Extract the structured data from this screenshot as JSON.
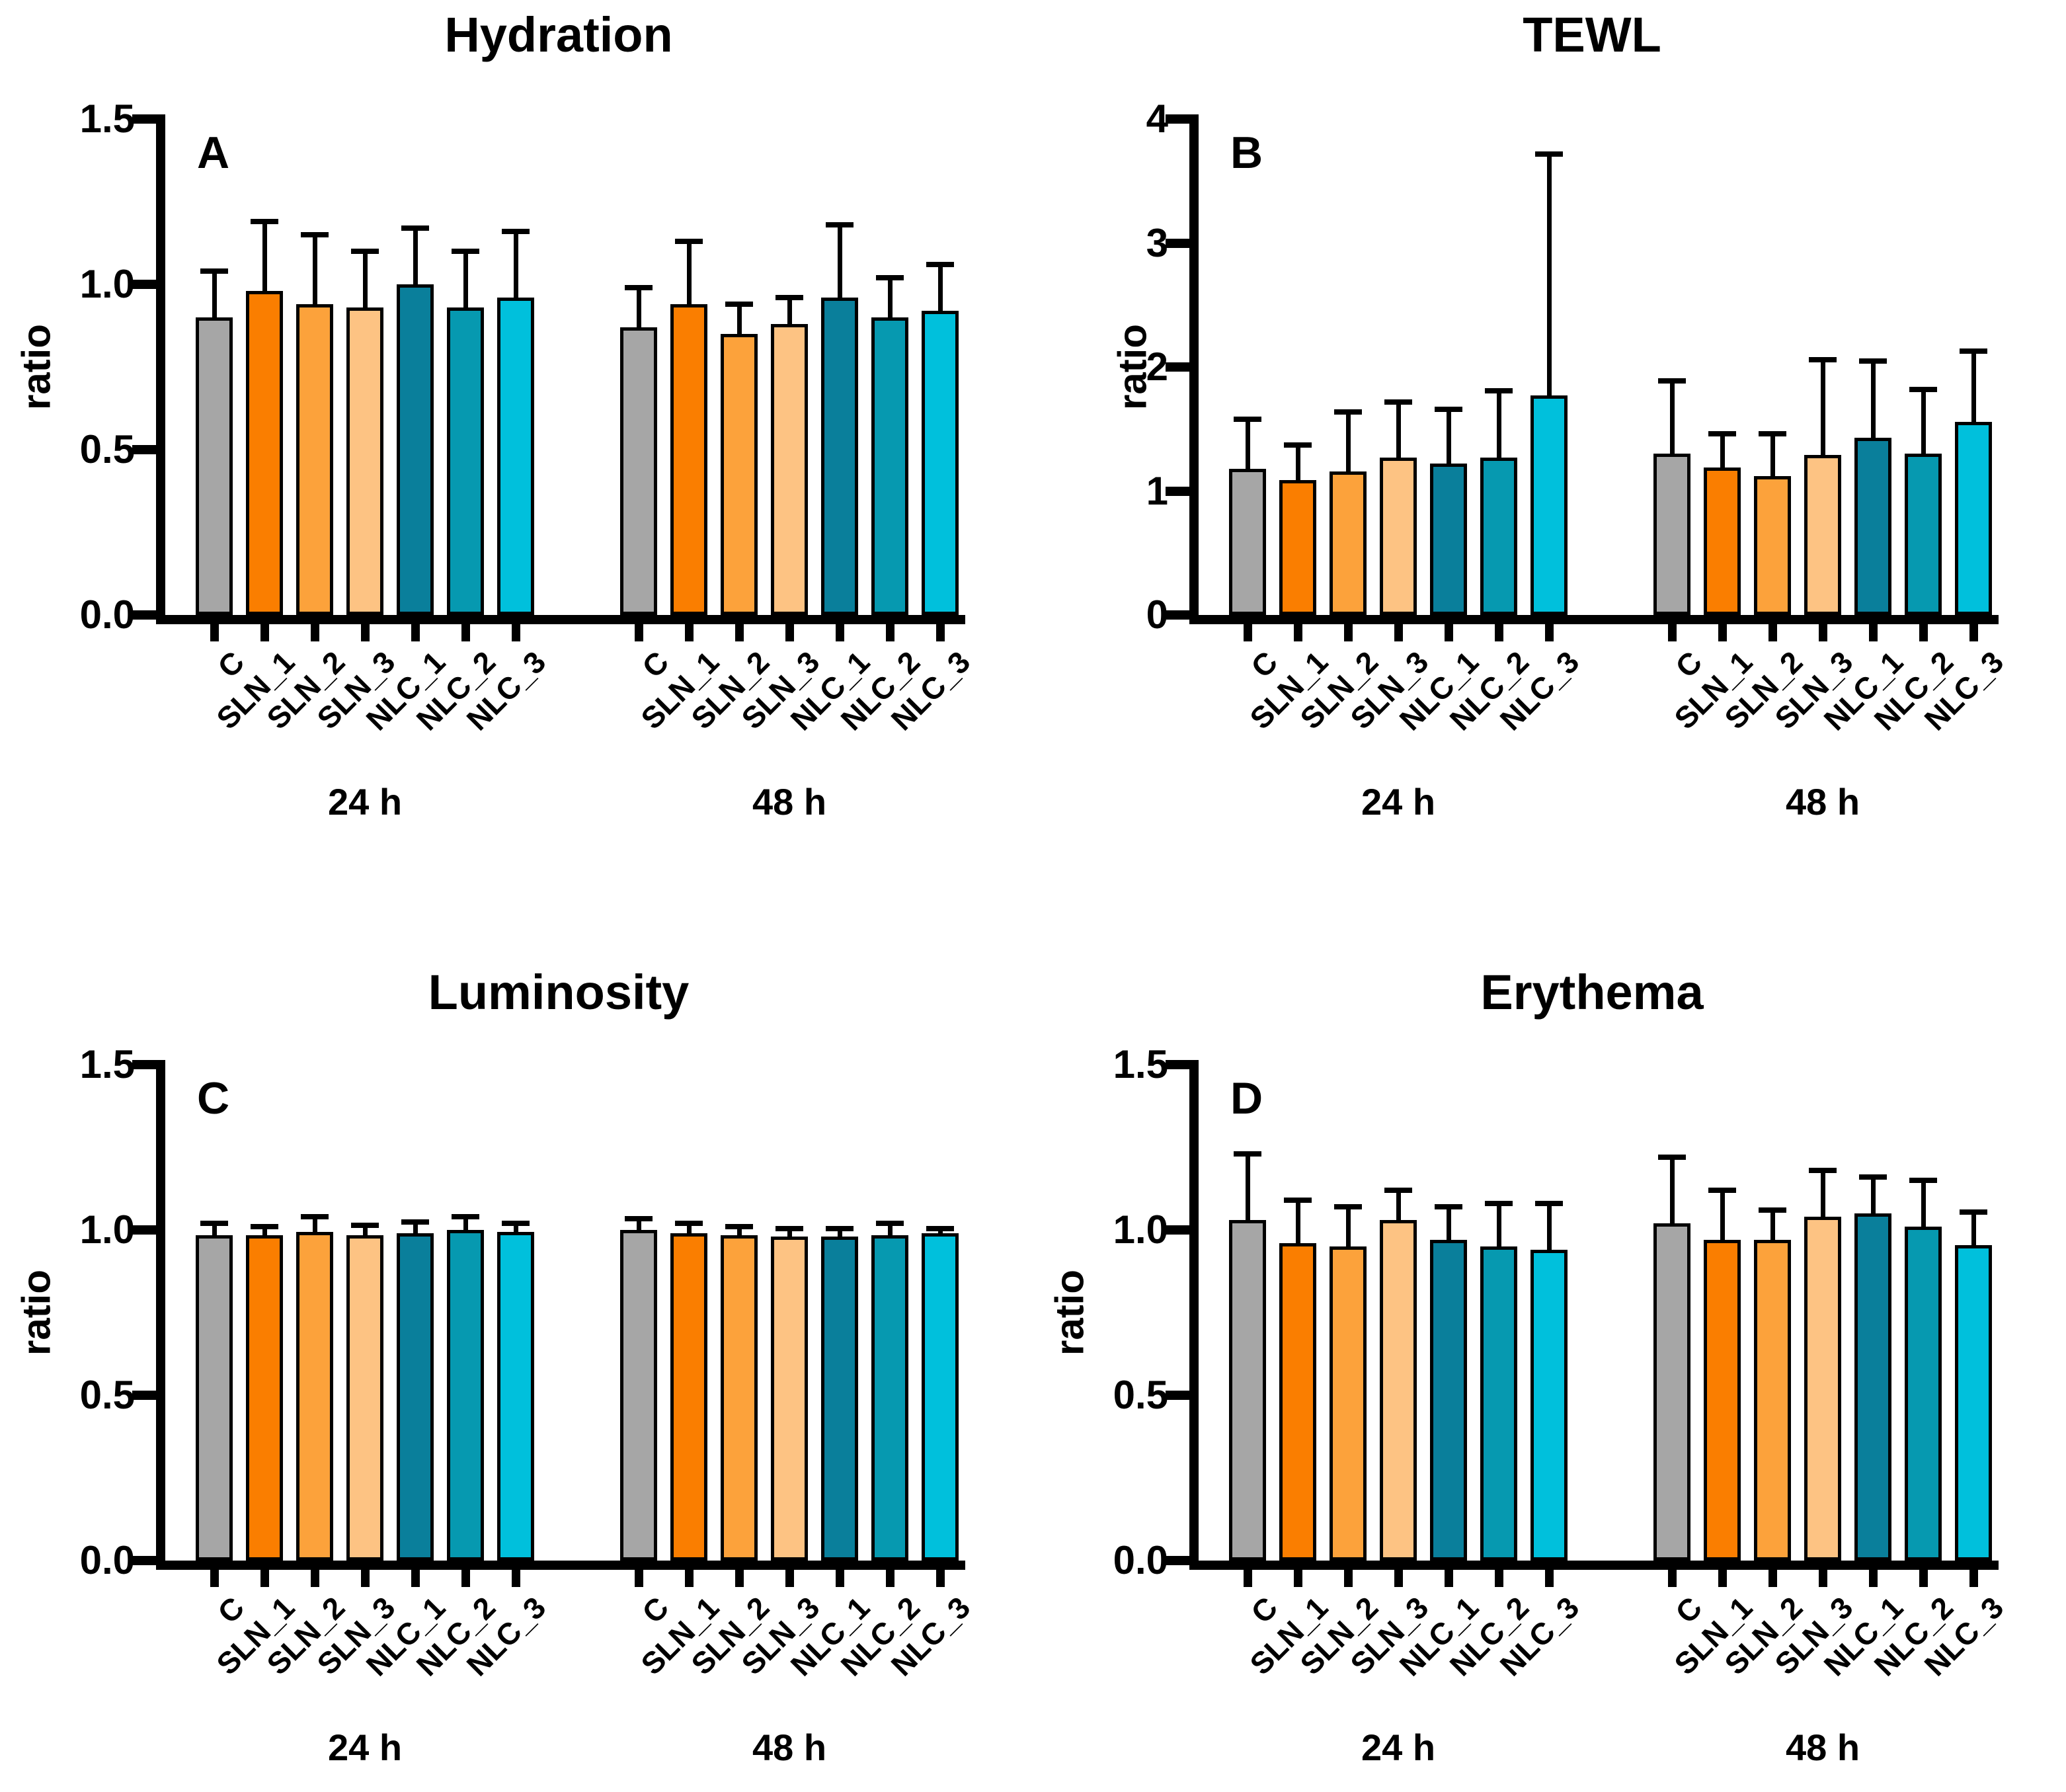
{
  "figure": {
    "background": "#FFFFFF"
  },
  "categories": [
    "C",
    "SLN_1",
    "SLN_2",
    "SLN_3",
    "NLC_1",
    "NLC_2",
    "NLC_3"
  ],
  "group_labels": [
    "24 h",
    "48 h"
  ],
  "colors": {
    "C": "#A6A6A6",
    "SLN_1": "#FA7E00",
    "SLN_2": "#FCA23B",
    "SLN_3": "#FDC383",
    "NLC_1": "#0A7F9B",
    "NLC_2": "#0699B0",
    "NLC_3": "#00C0DC"
  },
  "chart_data": [
    {
      "type": "bar",
      "panel": "A",
      "title": "Hydration",
      "ylabel": "ratio",
      "ylim": [
        0,
        1.5
      ],
      "yticks": [
        "0.0",
        "0.5",
        "1.0",
        "1.5"
      ],
      "grid": false,
      "legend": "none",
      "categories": [
        "C",
        "SLN_1",
        "SLN_2",
        "SLN_3",
        "NLC_1",
        "NLC_2",
        "NLC_3"
      ],
      "groups": [
        {
          "label": "24 h",
          "values": [
            0.9,
            0.98,
            0.94,
            0.93,
            1.0,
            0.93,
            0.96
          ],
          "error_top": [
            1.04,
            1.19,
            1.15,
            1.1,
            1.17,
            1.1,
            1.16
          ]
        },
        {
          "label": "48 h",
          "values": [
            0.87,
            0.94,
            0.85,
            0.88,
            0.96,
            0.9,
            0.92
          ],
          "error_top": [
            0.99,
            1.13,
            0.94,
            0.96,
            1.18,
            1.02,
            1.06
          ]
        }
      ]
    },
    {
      "type": "bar",
      "panel": "B",
      "title": "TEWL",
      "ylabel": "ratio",
      "ylim": [
        0,
        4
      ],
      "yticks": [
        "0",
        "1",
        "2",
        "3",
        "4"
      ],
      "grid": false,
      "legend": "none",
      "categories": [
        "C",
        "SLN_1",
        "SLN_2",
        "SLN_3",
        "NLC_1",
        "NLC_2",
        "NLC_3"
      ],
      "groups": [
        {
          "label": "24 h",
          "values": [
            1.18,
            1.09,
            1.16,
            1.27,
            1.22,
            1.27,
            1.77
          ],
          "error_top": [
            1.58,
            1.37,
            1.64,
            1.72,
            1.66,
            1.81,
            3.72
          ]
        },
        {
          "label": "48 h",
          "values": [
            1.3,
            1.19,
            1.12,
            1.29,
            1.43,
            1.3,
            1.56
          ],
          "error_top": [
            1.89,
            1.46,
            1.46,
            2.06,
            2.05,
            1.82,
            2.13
          ]
        }
      ]
    },
    {
      "type": "bar",
      "panel": "C",
      "title": "Luminosity",
      "ylabel": "ratio",
      "ylim": [
        0,
        1.5
      ],
      "yticks": [
        "0.0",
        "0.5",
        "1.0",
        "1.5"
      ],
      "grid": false,
      "legend": "none",
      "categories": [
        "C",
        "SLN_1",
        "SLN_2",
        "SLN_3",
        "NLC_1",
        "NLC_2",
        "NLC_3"
      ],
      "groups": [
        {
          "label": "24 h",
          "values": [
            0.985,
            0.985,
            0.995,
            0.985,
            0.99,
            1.0,
            0.995
          ],
          "error_top": [
            1.02,
            1.01,
            1.04,
            1.015,
            1.025,
            1.04,
            1.02
          ]
        },
        {
          "label": "48 h",
          "values": [
            1.0,
            0.99,
            0.985,
            0.98,
            0.98,
            0.985,
            0.99
          ],
          "error_top": [
            1.035,
            1.02,
            1.01,
            1.005,
            1.005,
            1.02,
            1.005
          ]
        }
      ]
    },
    {
      "type": "bar",
      "panel": "D",
      "title": "Erythema",
      "ylabel": "ratio",
      "ylim": [
        0,
        1.5
      ],
      "yticks": [
        "0.0",
        "0.5",
        "1.0",
        "1.5"
      ],
      "grid": false,
      "legend": "none",
      "categories": [
        "C",
        "SLN_1",
        "SLN_2",
        "SLN_3",
        "NLC_1",
        "NLC_2",
        "NLC_3"
      ],
      "groups": [
        {
          "label": "24 h",
          "values": [
            1.03,
            0.96,
            0.95,
            1.03,
            0.97,
            0.95,
            0.94
          ],
          "error_top": [
            1.23,
            1.09,
            1.07,
            1.12,
            1.07,
            1.08,
            1.08
          ]
        },
        {
          "label": "48 h",
          "values": [
            1.02,
            0.97,
            0.97,
            1.04,
            1.05,
            1.01,
            0.955
          ],
          "error_top": [
            1.22,
            1.12,
            1.06,
            1.18,
            1.16,
            1.15,
            1.055
          ]
        }
      ]
    }
  ]
}
